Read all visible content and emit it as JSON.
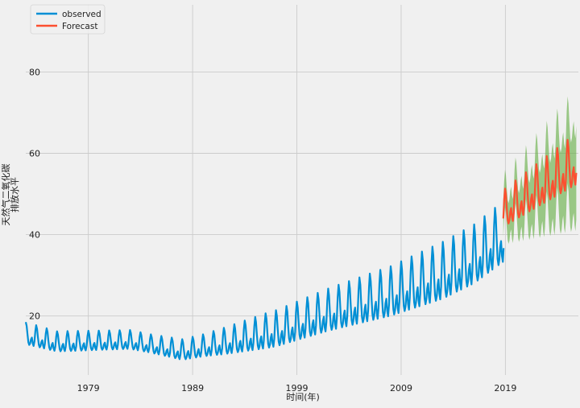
{
  "chart_data": {
    "type": "line",
    "title": "",
    "xlabel": "时间(年)",
    "ylabel_line1": "天然气二氧化碳",
    "ylabel_line2": "排放水平",
    "xlim": [
      1973.0,
      2026.0
    ],
    "ylim": [
      5.5,
      96.5
    ],
    "xticks": [
      1979,
      1989,
      1999,
      2009,
      2019
    ],
    "yticks": [
      20,
      40,
      60,
      80
    ],
    "grid": true,
    "legend_position": "top-left",
    "colors": {
      "observed": "#008fd5",
      "forecast": "#fc4f30",
      "ci": "#6ab04c",
      "background": "#f0f0f0",
      "grid": "#cbcbcb",
      "text": "#222222"
    },
    "series": [
      {
        "name": "observed",
        "model": "monthly seasonal series",
        "start": 1973.0,
        "end": 2018.8,
        "trend_knots": [
          [
            1973,
            15.5
          ],
          [
            1976,
            13.5
          ],
          [
            1983,
            14.0
          ],
          [
            1988,
            11.5
          ],
          [
            1992,
            13.5
          ],
          [
            1997,
            16.5
          ],
          [
            2002,
            21.0
          ],
          [
            2008,
            25.5
          ],
          [
            2013,
            30.5
          ],
          [
            2016,
            34.5
          ],
          [
            2018.8,
            40.0
          ]
        ],
        "amplitude_knots": [
          [
            1973,
            6.0
          ],
          [
            1976,
            5.5
          ],
          [
            1985,
            5.0
          ],
          [
            1990,
            6.0
          ],
          [
            1996,
            9.5
          ],
          [
            2002,
            11.5
          ],
          [
            2008,
            13.5
          ],
          [
            2013,
            15.5
          ],
          [
            2018.8,
            16.5
          ]
        ]
      },
      {
        "name": "Forecast",
        "model": "monthly seasonal series",
        "start": 2018.8,
        "end": 2025.8,
        "trend_knots": [
          [
            2018.8,
            46.0
          ],
          [
            2025.8,
            58.0
          ]
        ],
        "amplitude_knots": [
          [
            2018.8,
            10.0
          ],
          [
            2025.8,
            14.0
          ]
        ],
        "ci_halfwidth_knots": [
          [
            2018.8,
            4.5
          ],
          [
            2025.8,
            11.5
          ]
        ]
      }
    ]
  }
}
